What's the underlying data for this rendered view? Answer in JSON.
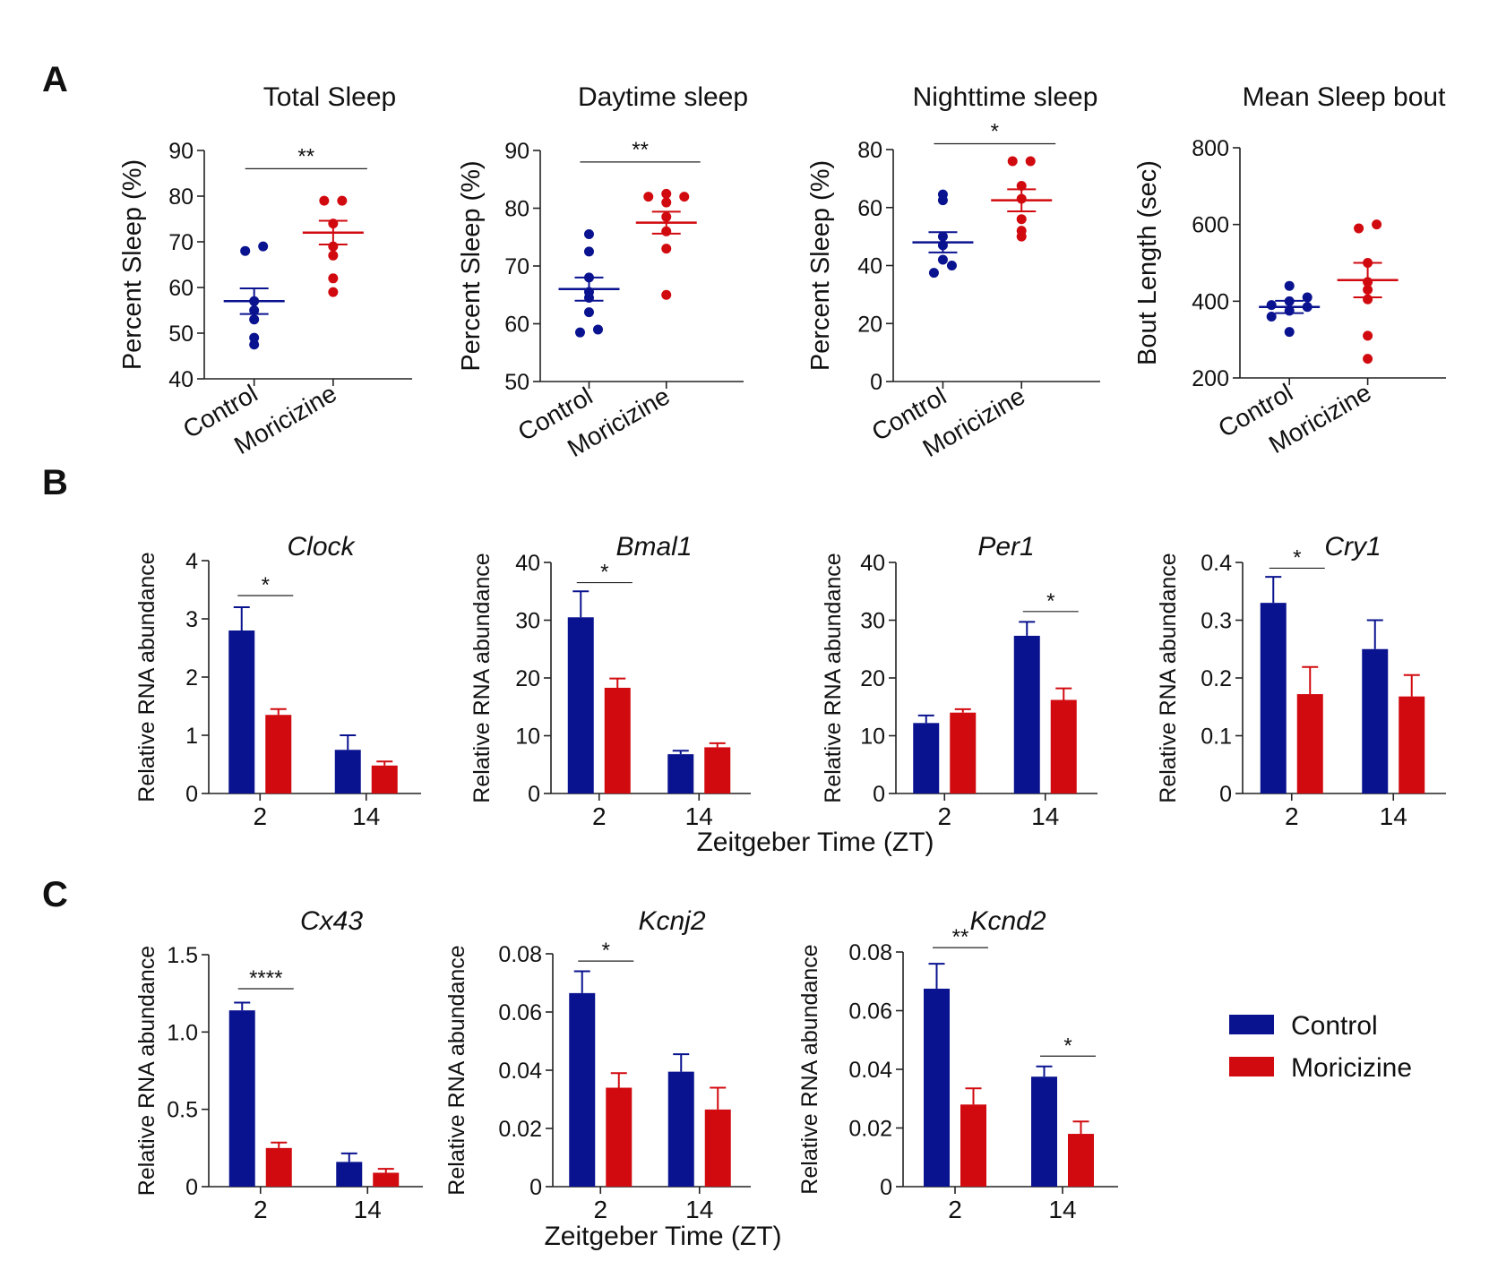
{
  "panel_letters": [
    "A",
    "B",
    "C"
  ],
  "colors": {
    "control": "#0a138f",
    "moricizine": "#d10a0f"
  },
  "legend": {
    "items": [
      {
        "label": "Control",
        "series": "control"
      },
      {
        "label": "Moricizine",
        "series": "moricizine"
      }
    ]
  },
  "shared_xlabel": "Zeitgeber Time (ZT)",
  "chart_data": [
    {
      "type": "scatter",
      "panel": "A",
      "title": "Total Sleep",
      "ylabel": "Percent Sleep (%)",
      "categories": [
        "Control",
        "Moricizine"
      ],
      "ylim": [
        40,
        90
      ],
      "yticks": [
        40,
        50,
        60,
        70,
        80,
        90
      ],
      "series": [
        {
          "name": "Control",
          "points": [
            47.5,
            49,
            53,
            55,
            57,
            68,
            69
          ],
          "mean": 57,
          "sem": 2.8
        },
        {
          "name": "Moricizine",
          "points": [
            59,
            62,
            67,
            69,
            74,
            79,
            79
          ],
          "mean": 72,
          "sem": 2.6
        }
      ],
      "significance": [
        {
          "label": "**",
          "from": 0,
          "to": 1,
          "y": 86
        }
      ]
    },
    {
      "type": "scatter",
      "panel": "A",
      "title": "Daytime sleep",
      "ylabel": "Percent Sleep (%)",
      "categories": [
        "Control",
        "Moricizine"
      ],
      "ylim": [
        50,
        90
      ],
      "yticks": [
        50,
        60,
        70,
        80,
        90
      ],
      "series": [
        {
          "name": "Control",
          "points": [
            58.5,
            59,
            62,
            64.5,
            65.5,
            68,
            72.5,
            75.5
          ],
          "mean": 66,
          "sem": 2
        },
        {
          "name": "Moricizine",
          "points": [
            65,
            73,
            76,
            78.5,
            81,
            82,
            82.5,
            82
          ],
          "mean": 77.5,
          "sem": 1.9
        }
      ],
      "significance": [
        {
          "label": "**",
          "from": 0,
          "to": 1,
          "y": 88
        }
      ]
    },
    {
      "type": "scatter",
      "panel": "A",
      "title": "Nighttime sleep",
      "ylabel": "Percent Sleep (%)",
      "categories": [
        "Control",
        "Moricizine"
      ],
      "ylim": [
        0,
        80
      ],
      "yticks": [
        0,
        20,
        40,
        60,
        80
      ],
      "series": [
        {
          "name": "Control",
          "points": [
            37.5,
            40,
            42,
            47,
            50,
            62.5,
            64.5
          ],
          "mean": 48,
          "sem": 3.5
        },
        {
          "name": "Moricizine",
          "points": [
            50,
            52,
            56,
            63,
            67.5,
            76,
            76
          ],
          "mean": 62.5,
          "sem": 3.8
        }
      ],
      "significance": [
        {
          "label": "*",
          "from": 0,
          "to": 1,
          "y": 82
        }
      ]
    },
    {
      "type": "scatter",
      "panel": "A",
      "title": "Mean Sleep bout",
      "ylabel": "Bout Length (sec)",
      "categories": [
        "Control",
        "Moricizine"
      ],
      "ylim": [
        200,
        800
      ],
      "yticks": [
        200,
        400,
        600,
        800
      ],
      "series": [
        {
          "name": "Control",
          "points": [
            320,
            360,
            375,
            385,
            390,
            400,
            410,
            440
          ],
          "mean": 385,
          "sem": 16
        },
        {
          "name": "Moricizine",
          "points": [
            250,
            310,
            405,
            430,
            450,
            500,
            590,
            600
          ],
          "mean": 455,
          "sem": 45
        }
      ],
      "significance": []
    },
    {
      "type": "bar",
      "panel": "B",
      "title": "Clock",
      "ylabel": "Relative RNA abundance",
      "categories": [
        "2",
        "14"
      ],
      "ylim": [
        0,
        4
      ],
      "yticks": [
        "0",
        "1",
        "2",
        "3",
        "4"
      ],
      "series": [
        {
          "name": "Control",
          "values": [
            2.8,
            0.75
          ],
          "errors": [
            0.4,
            0.25
          ]
        },
        {
          "name": "Moricizine",
          "values": [
            1.35,
            0.48
          ],
          "errors": [
            0.1,
            0.07
          ]
        }
      ],
      "significance": [
        {
          "label": "*",
          "category": 0,
          "y": 3.4
        }
      ]
    },
    {
      "type": "bar",
      "panel": "B",
      "title": "Bmal1",
      "ylabel": "Relative RNA abundance",
      "categories": [
        "2",
        "14"
      ],
      "ylim": [
        0,
        40
      ],
      "yticks": [
        "0",
        "10",
        "20",
        "30",
        "40"
      ],
      "series": [
        {
          "name": "Control",
          "values": [
            30.5,
            6.8
          ],
          "errors": [
            4.5,
            0.6
          ]
        },
        {
          "name": "Moricizine",
          "values": [
            18.3,
            8
          ],
          "errors": [
            1.6,
            0.7
          ]
        }
      ],
      "significance": [
        {
          "label": "*",
          "category": 0,
          "y": 36.5
        }
      ]
    },
    {
      "type": "bar",
      "panel": "B",
      "title": "Per1",
      "ylabel": "Relative RNA abundance",
      "categories": [
        "2",
        "14"
      ],
      "ylim": [
        0,
        40
      ],
      "yticks": [
        "0",
        "10",
        "20",
        "30",
        "40"
      ],
      "series": [
        {
          "name": "Control",
          "values": [
            12.2,
            27.3
          ],
          "errors": [
            1.3,
            2.4
          ]
        },
        {
          "name": "Moricizine",
          "values": [
            14,
            16.2
          ],
          "errors": [
            0.6,
            2
          ]
        }
      ],
      "significance": [
        {
          "label": "*",
          "category": 1,
          "y": 31.5
        }
      ]
    },
    {
      "type": "bar",
      "panel": "B",
      "title": "Cry1",
      "ylabel": "Relative RNA abundance",
      "categories": [
        "2",
        "14"
      ],
      "ylim": [
        0,
        0.4
      ],
      "yticks": [
        "0",
        "0.1",
        "0.2",
        "0.3",
        "0.4"
      ],
      "series": [
        {
          "name": "Control",
          "values": [
            0.33,
            0.25
          ],
          "errors": [
            0.045,
            0.05
          ]
        },
        {
          "name": "Moricizine",
          "values": [
            0.172,
            0.168
          ],
          "errors": [
            0.047,
            0.037
          ]
        }
      ],
      "significance": [
        {
          "label": "*",
          "category": 0,
          "y": 0.39
        }
      ]
    },
    {
      "type": "bar",
      "panel": "C",
      "title": "Cx43",
      "ylabel": "Relative RNA abundance",
      "categories": [
        "2",
        "14"
      ],
      "ylim": [
        0,
        1.5
      ],
      "yticks": [
        "0",
        "0.5",
        "1.0",
        "1.5"
      ],
      "series": [
        {
          "name": "Control",
          "values": [
            1.14,
            0.16
          ],
          "errors": [
            0.05,
            0.055
          ]
        },
        {
          "name": "Moricizine",
          "values": [
            0.25,
            0.09
          ],
          "errors": [
            0.035,
            0.025
          ]
        }
      ],
      "significance": [
        {
          "label": "****",
          "category": 0,
          "y": 1.28
        }
      ]
    },
    {
      "type": "bar",
      "panel": "C",
      "title": "Kcnj2",
      "ylabel": "Relative RNA abundance",
      "categories": [
        "2",
        "14"
      ],
      "ylim": [
        0,
        0.08
      ],
      "yticks": [
        "0",
        "0.02",
        "0.04",
        "0.06",
        "0.08"
      ],
      "series": [
        {
          "name": "Control",
          "values": [
            0.0665,
            0.0395
          ],
          "errors": [
            0.0075,
            0.006
          ]
        },
        {
          "name": "Moricizine",
          "values": [
            0.034,
            0.0265
          ],
          "errors": [
            0.005,
            0.0075
          ]
        }
      ],
      "significance": [
        {
          "label": "*",
          "category": 0,
          "y": 0.0775
        }
      ]
    },
    {
      "type": "bar",
      "panel": "C",
      "title": "Kcnd2",
      "ylabel": "Relative RNA abundance",
      "categories": [
        "2",
        "14"
      ],
      "ylim": [
        0,
        0.08
      ],
      "yticks": [
        "0",
        "0.02",
        "0.04",
        "0.06",
        "0.08"
      ],
      "series": [
        {
          "name": "Control",
          "values": [
            0.0675,
            0.0375
          ],
          "errors": [
            0.0085,
            0.0035
          ]
        },
        {
          "name": "Moricizine",
          "values": [
            0.028,
            0.018
          ],
          "errors": [
            0.0055,
            0.0042
          ]
        }
      ],
      "significance": [
        {
          "label": "**",
          "category": 0,
          "y": 0.0815
        },
        {
          "label": "*",
          "category": 1,
          "y": 0.0445
        }
      ]
    }
  ]
}
